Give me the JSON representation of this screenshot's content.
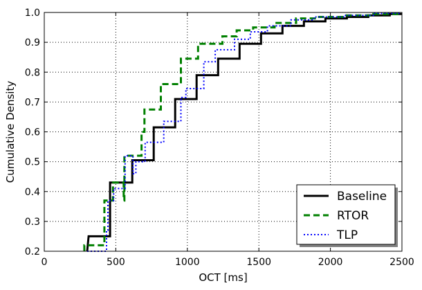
{
  "chart_data": {
    "type": "line",
    "subtype": "step-cdf",
    "title": "",
    "xlabel": "OCT [ms]",
    "ylabel": "Cumulative Density",
    "xlim": [
      0,
      2500
    ],
    "ylim": [
      0.2,
      1.0
    ],
    "xticks": [
      "0",
      "500",
      "1000",
      "1500",
      "2000",
      "2500"
    ],
    "yticks": [
      "0.2",
      "0.3",
      "0.4",
      "0.5",
      "0.6",
      "0.7",
      "0.8",
      "0.9",
      "1.0"
    ],
    "grid": true,
    "legend_position": "bottom-right",
    "series": [
      {
        "name": "Baseline",
        "color": "#000000",
        "style": "solid",
        "points": [
          [
            300,
            0.2
          ],
          [
            310,
            0.25
          ],
          [
            460,
            0.25
          ],
          [
            460,
            0.43
          ],
          [
            615,
            0.43
          ],
          [
            615,
            0.505
          ],
          [
            765,
            0.505
          ],
          [
            765,
            0.615
          ],
          [
            915,
            0.615
          ],
          [
            915,
            0.71
          ],
          [
            1065,
            0.71
          ],
          [
            1065,
            0.79
          ],
          [
            1215,
            0.79
          ],
          [
            1215,
            0.845
          ],
          [
            1365,
            0.845
          ],
          [
            1365,
            0.895
          ],
          [
            1515,
            0.895
          ],
          [
            1515,
            0.93
          ],
          [
            1665,
            0.93
          ],
          [
            1665,
            0.955
          ],
          [
            1815,
            0.955
          ],
          [
            1815,
            0.97
          ],
          [
            1965,
            0.97
          ],
          [
            1965,
            0.98
          ],
          [
            2115,
            0.98
          ],
          [
            2115,
            0.985
          ],
          [
            2265,
            0.985
          ],
          [
            2265,
            0.99
          ],
          [
            2415,
            0.99
          ],
          [
            2415,
            0.995
          ],
          [
            2500,
            0.995
          ]
        ]
      },
      {
        "name": "RTOR",
        "color": "#008000",
        "style": "dashed",
        "points": [
          [
            280,
            0.2
          ],
          [
            280,
            0.22
          ],
          [
            420,
            0.22
          ],
          [
            420,
            0.37
          ],
          [
            480,
            0.37
          ],
          [
            480,
            0.43
          ],
          [
            555,
            0.43
          ],
          [
            555,
            0.37
          ],
          [
            560,
            0.37
          ],
          [
            560,
            0.52
          ],
          [
            680,
            0.52
          ],
          [
            680,
            0.6
          ],
          [
            700,
            0.6
          ],
          [
            700,
            0.675
          ],
          [
            815,
            0.675
          ],
          [
            815,
            0.76
          ],
          [
            955,
            0.76
          ],
          [
            955,
            0.845
          ],
          [
            1075,
            0.845
          ],
          [
            1075,
            0.895
          ],
          [
            1245,
            0.895
          ],
          [
            1245,
            0.92
          ],
          [
            1345,
            0.92
          ],
          [
            1345,
            0.94
          ],
          [
            1460,
            0.94
          ],
          [
            1460,
            0.95
          ],
          [
            1610,
            0.95
          ],
          [
            1610,
            0.965
          ],
          [
            1760,
            0.965
          ],
          [
            1760,
            0.98
          ],
          [
            1920,
            0.98
          ],
          [
            1920,
            0.985
          ],
          [
            2100,
            0.985
          ],
          [
            2100,
            0.99
          ],
          [
            2300,
            0.99
          ],
          [
            2300,
            0.995
          ],
          [
            2500,
            0.995
          ]
        ]
      },
      {
        "name": "TLP",
        "color": "#0000ff",
        "style": "dotted",
        "points": [
          [
            300,
            0.2
          ],
          [
            300,
            0.2
          ],
          [
            435,
            0.2
          ],
          [
            435,
            0.27
          ],
          [
            445,
            0.27
          ],
          [
            445,
            0.37
          ],
          [
            485,
            0.37
          ],
          [
            485,
            0.41
          ],
          [
            565,
            0.41
          ],
          [
            565,
            0.52
          ],
          [
            620,
            0.52
          ],
          [
            620,
            0.46
          ],
          [
            640,
            0.46
          ],
          [
            640,
            0.5
          ],
          [
            705,
            0.5
          ],
          [
            705,
            0.565
          ],
          [
            835,
            0.565
          ],
          [
            835,
            0.635
          ],
          [
            955,
            0.635
          ],
          [
            955,
            0.715
          ],
          [
            990,
            0.715
          ],
          [
            990,
            0.745
          ],
          [
            1115,
            0.745
          ],
          [
            1115,
            0.835
          ],
          [
            1195,
            0.835
          ],
          [
            1195,
            0.875
          ],
          [
            1330,
            0.875
          ],
          [
            1330,
            0.91
          ],
          [
            1440,
            0.91
          ],
          [
            1440,
            0.935
          ],
          [
            1560,
            0.935
          ],
          [
            1560,
            0.955
          ],
          [
            1725,
            0.955
          ],
          [
            1725,
            0.975
          ],
          [
            1885,
            0.975
          ],
          [
            1885,
            0.985
          ],
          [
            2100,
            0.985
          ],
          [
            2100,
            0.99
          ],
          [
            2300,
            0.99
          ],
          [
            2300,
            0.997
          ],
          [
            2500,
            0.997
          ]
        ]
      }
    ]
  }
}
